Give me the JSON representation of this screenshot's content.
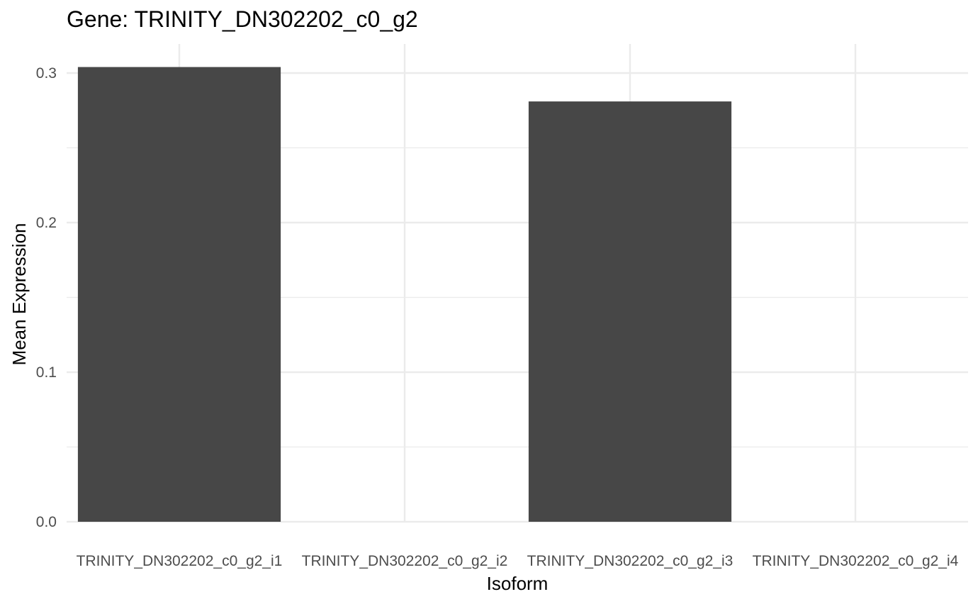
{
  "chart_data": {
    "type": "bar",
    "title": "Gene: TRINITY_DN302202_c0_g2",
    "xlabel": "Isoform",
    "ylabel": "Mean Expression",
    "categories": [
      "TRINITY_DN302202_c0_g2_i1",
      "TRINITY_DN302202_c0_g2_i2",
      "TRINITY_DN302202_c0_g2_i3",
      "TRINITY_DN302202_c0_g2_i4"
    ],
    "values": [
      0.304,
      0,
      0.281,
      0
    ],
    "ylim": [
      0,
      0.3
    ],
    "yticks": [
      "0.0",
      "0.1",
      "0.2",
      "0.3"
    ],
    "grid": true,
    "legend": "none",
    "bar_color": "#474747",
    "grid_color": "#ebebeb"
  }
}
